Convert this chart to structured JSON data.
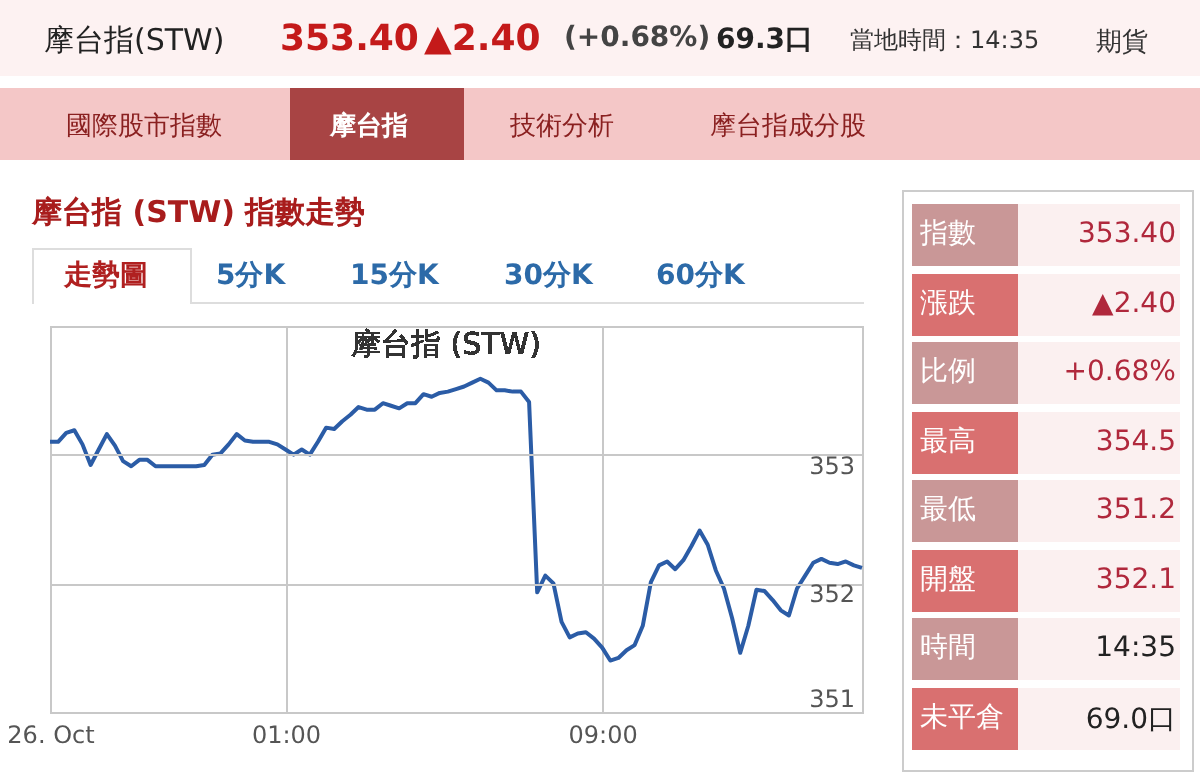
{
  "chart_data": [
    {
      "type": "other",
      "title": "摩台指(STW)",
      "annotations": [
        "353.40",
        "▲2.40",
        "(+0.68%)",
        "69.3口",
        "當地時間：14:35",
        "期貨",
        "國際股市指數",
        "摩台指",
        "技術分析",
        "摩台指成分股"
      ]
    },
    {
      "type": "other",
      "title": "摩台指 (STW) 指數走勢",
      "annotations": [
        "走勢圖",
        "5分K",
        "15分K",
        "30分K",
        "60分K"
      ]
    },
    {
      "type": "line",
      "title": "摩台指 (STW)",
      "color": "#2b5ca6",
      "grid": true,
      "marker": "none",
      "line_style": "solid",
      "ylim": [
        351,
        354
      ],
      "yticks": [
        351,
        352,
        353
      ],
      "categories": [
        "26. Oct",
        null,
        null,
        null,
        null,
        null,
        null,
        null,
        null,
        null,
        null,
        null,
        null,
        null,
        null,
        null,
        null,
        null,
        null,
        null,
        null,
        null,
        null,
        null,
        null,
        null,
        null,
        null,
        null,
        "01:00",
        null,
        null,
        null,
        null,
        null,
        null,
        null,
        null,
        null,
        null,
        null,
        null,
        null,
        null,
        null,
        null,
        null,
        null,
        null,
        null,
        null,
        null,
        null,
        null,
        null,
        null,
        null,
        null,
        null,
        null,
        null,
        null,
        null,
        null,
        null,
        null,
        null,
        null,
        "09:00",
        null,
        null,
        null,
        null,
        null,
        null,
        null,
        null,
        null,
        null,
        null,
        null,
        null,
        null,
        null,
        null,
        null,
        null,
        null,
        null,
        null,
        null,
        null,
        null,
        null,
        null,
        null,
        null,
        null,
        null,
        null,
        null
      ],
      "values": [
        353.1,
        353.1,
        353.17,
        353.19,
        353.08,
        352.92,
        353.04,
        353.16,
        353.07,
        352.95,
        352.91,
        352.96,
        352.96,
        352.91,
        352.91,
        352.91,
        352.91,
        352.91,
        352.91,
        352.92,
        353.0,
        353.01,
        353.08,
        353.16,
        353.11,
        353.1,
        353.1,
        353.1,
        353.08,
        353.04,
        353.0,
        353.04,
        353.0,
        353.1,
        353.21,
        353.2,
        353.26,
        353.31,
        353.37,
        353.35,
        353.35,
        353.4,
        353.38,
        353.36,
        353.4,
        353.4,
        353.47,
        353.45,
        353.48,
        353.49,
        353.51,
        353.53,
        353.56,
        353.59,
        353.56,
        353.5,
        353.5,
        353.49,
        353.49,
        353.41,
        351.93,
        352.06,
        352.0,
        351.7,
        351.58,
        351.61,
        351.62,
        351.57,
        351.5,
        351.4,
        351.42,
        351.48,
        351.52,
        351.67,
        352.01,
        352.14,
        352.17,
        352.11,
        352.18,
        352.29,
        352.41,
        352.3,
        352.1,
        351.96,
        351.73,
        351.46,
        351.67,
        351.95,
        351.94,
        351.87,
        351.79,
        351.75,
        351.96,
        352.06,
        352.16,
        352.19,
        352.16,
        352.15,
        352.17,
        352.14,
        352.12
      ]
    },
    {
      "type": "other",
      "annotations": [
        "指數",
        "353.40",
        "漲跌",
        "▲2.40",
        "比例",
        "+0.68%",
        "最高",
        "354.5",
        "最低",
        "351.2",
        "開盤",
        "352.1",
        "時間",
        "14:35",
        "未平倉",
        "69.0口"
      ]
    }
  ]
}
